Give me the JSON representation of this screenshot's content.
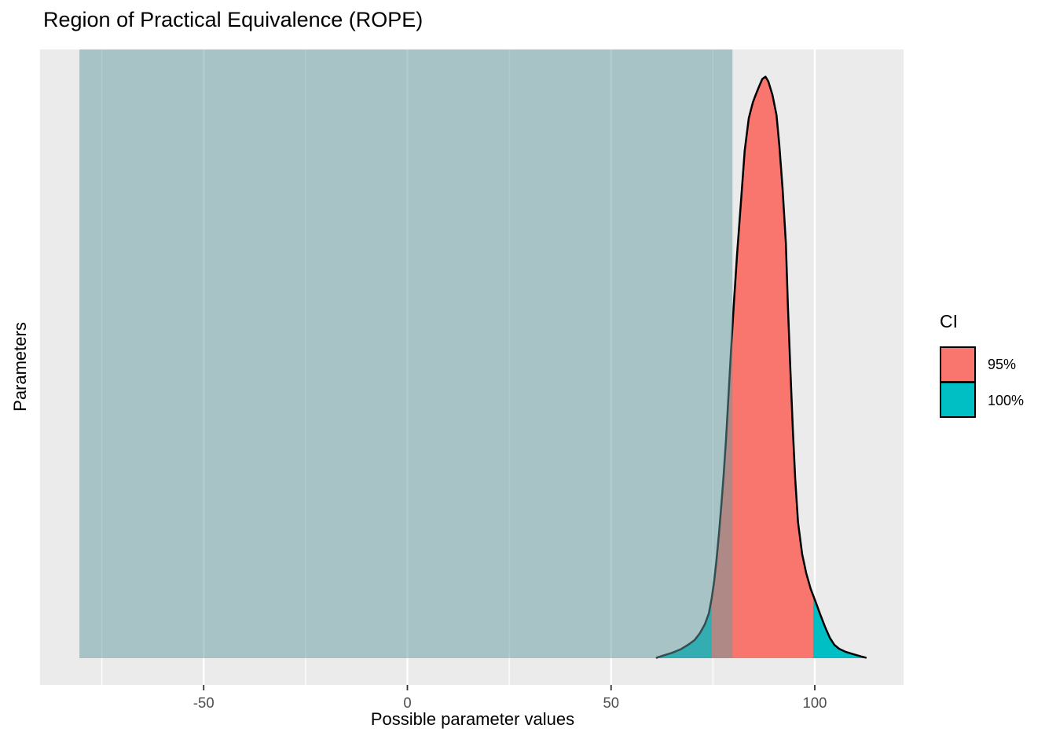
{
  "title": "Region of Practical Equivalence (ROPE)",
  "axes": {
    "x_label": "Possible parameter values",
    "y_label": "Parameters"
  },
  "legend": {
    "title": "CI",
    "entries": [
      {
        "label": "95%",
        "color": "#F8766D"
      },
      {
        "label": "100%",
        "color": "#00BFC4"
      }
    ]
  },
  "chart_data": {
    "type": "area",
    "title": "Region of Practical Equivalence (ROPE)",
    "xlabel": "Possible parameter values",
    "ylabel": "Parameters",
    "xlim": [
      -90.2,
      121.8
    ],
    "x_major_ticks": [
      -50,
      0,
      50,
      100
    ],
    "x_minor_gridlines": [
      -75,
      -25,
      25,
      75
    ],
    "grid": true,
    "legend_position": "right",
    "rope_range": [
      -80.5,
      79.8
    ],
    "ci_95_range": [
      74.7,
      99.6
    ],
    "ci_100_range": [
      61.2,
      112.5
    ],
    "peak": {
      "x": 87.9,
      "height": 1.0
    },
    "colors": {
      "ci_95": "#F8766D",
      "ci_100": "#00BFC4",
      "rope_fill": "rgba(101,155,159,0.5)",
      "panel_bg": "#EBEBEB",
      "gridline": "#FFFFFF",
      "curve_stroke": "#000000",
      "tick_mark": "#333333",
      "tick_label": "#4D4D4D"
    },
    "density_curve": [
      [
        61.2,
        0.001
      ],
      [
        63.0,
        0.005
      ],
      [
        64.9,
        0.009
      ],
      [
        67.0,
        0.015
      ],
      [
        68.9,
        0.023
      ],
      [
        70.5,
        0.031
      ],
      [
        71.8,
        0.043
      ],
      [
        73.0,
        0.058
      ],
      [
        74.0,
        0.077
      ],
      [
        74.7,
        0.103
      ],
      [
        75.3,
        0.132
      ],
      [
        75.9,
        0.17
      ],
      [
        76.5,
        0.216
      ],
      [
        77.1,
        0.267
      ],
      [
        77.6,
        0.313
      ],
      [
        78.2,
        0.375
      ],
      [
        78.8,
        0.449
      ],
      [
        79.4,
        0.524
      ],
      [
        80.1,
        0.605
      ],
      [
        80.9,
        0.692
      ],
      [
        81.9,
        0.787
      ],
      [
        82.8,
        0.872
      ],
      [
        83.8,
        0.928
      ],
      [
        84.8,
        0.955
      ],
      [
        85.5,
        0.968
      ],
      [
        86.3,
        0.982
      ],
      [
        87.1,
        0.995
      ],
      [
        87.9,
        0.999
      ],
      [
        88.6,
        0.991
      ],
      [
        89.6,
        0.968
      ],
      [
        90.6,
        0.933
      ],
      [
        91.3,
        0.881
      ],
      [
        92.1,
        0.807
      ],
      [
        92.9,
        0.713
      ],
      [
        93.4,
        0.605
      ],
      [
        94.0,
        0.497
      ],
      [
        94.6,
        0.395
      ],
      [
        95.2,
        0.308
      ],
      [
        95.9,
        0.233
      ],
      [
        96.9,
        0.179
      ],
      [
        97.9,
        0.146
      ],
      [
        99.0,
        0.119
      ],
      [
        100.2,
        0.097
      ],
      [
        101.3,
        0.076
      ],
      [
        102.5,
        0.054
      ],
      [
        103.7,
        0.035
      ],
      [
        104.8,
        0.023
      ],
      [
        106.0,
        0.016
      ],
      [
        107.5,
        0.011
      ],
      [
        109.4,
        0.007
      ],
      [
        111.4,
        0.003
      ],
      [
        112.5,
        0.001
      ]
    ]
  }
}
